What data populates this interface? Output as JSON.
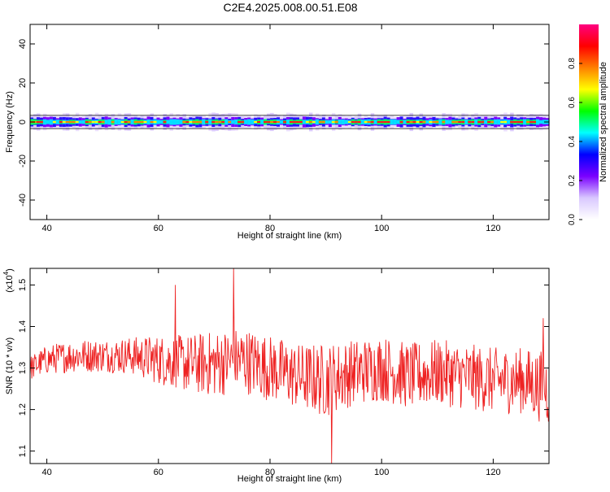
{
  "title": "C2E4.2025.008.00.51.E08",
  "chart_data": [
    {
      "type": "heatmap",
      "xlabel": "Height of straight line (km)",
      "ylabel": "Frequency (Hz)",
      "xlim": [
        37,
        130
      ],
      "ylim": [
        -50,
        50
      ],
      "xticks": [
        40,
        60,
        80,
        100,
        120
      ],
      "yticks": [
        40,
        20,
        0,
        -20,
        -40
      ],
      "band_center_frequency": 0,
      "band_halfwidth_frequency": 4,
      "colorbar": {
        "label": "Normalized spectral amplitude",
        "range": [
          0,
          1
        ],
        "ticks": [
          "0.0",
          "0.2",
          "0.4",
          "0.6",
          "0.8"
        ],
        "colormap": [
          "#ffffff",
          "#d9c8ff",
          "#7a00ff",
          "#0000ff",
          "#00ffff",
          "#00ff00",
          "#ffff00",
          "#ff8000",
          "#ff0000",
          "#ff0080"
        ]
      }
    },
    {
      "type": "line",
      "xlabel": "Height of straight line (km)",
      "ylabel": "SNR (10 * v/v)",
      "yscale_label": "(x10",
      "yscale_exponent": "4",
      "xlim": [
        37,
        130
      ],
      "ylim": [
        1.07,
        1.54
      ],
      "xticks": [
        40,
        60,
        80,
        100,
        120
      ],
      "yticks": [
        "1.1",
        "1.2",
        "1.3",
        "1.4",
        "1.5"
      ],
      "series": [
        {
          "color": "#ee2222",
          "x": [
            37,
            40,
            45,
            50,
            55,
            60,
            65,
            70,
            75,
            80,
            85,
            90,
            95,
            100,
            105,
            110,
            115,
            120,
            125,
            130
          ],
          "y": [
            1.3,
            1.32,
            1.33,
            1.33,
            1.33,
            1.32,
            1.31,
            1.31,
            1.32,
            1.3,
            1.28,
            1.27,
            1.29,
            1.3,
            1.28,
            1.29,
            1.28,
            1.27,
            1.27,
            1.25
          ],
          "spread": [
            0.03,
            0.035,
            0.04,
            0.04,
            0.045,
            0.06,
            0.07,
            0.08,
            0.08,
            0.08,
            0.08,
            0.09,
            0.08,
            0.08,
            0.08,
            0.08,
            0.08,
            0.08,
            0.08,
            0.09
          ],
          "spikes": [
            {
              "x": 63,
              "y": 1.5
            },
            {
              "x": 73.5,
              "y": 1.54
            },
            {
              "x": 91,
              "y": 1.07
            },
            {
              "x": 129,
              "y": 1.42
            }
          ]
        }
      ]
    }
  ]
}
